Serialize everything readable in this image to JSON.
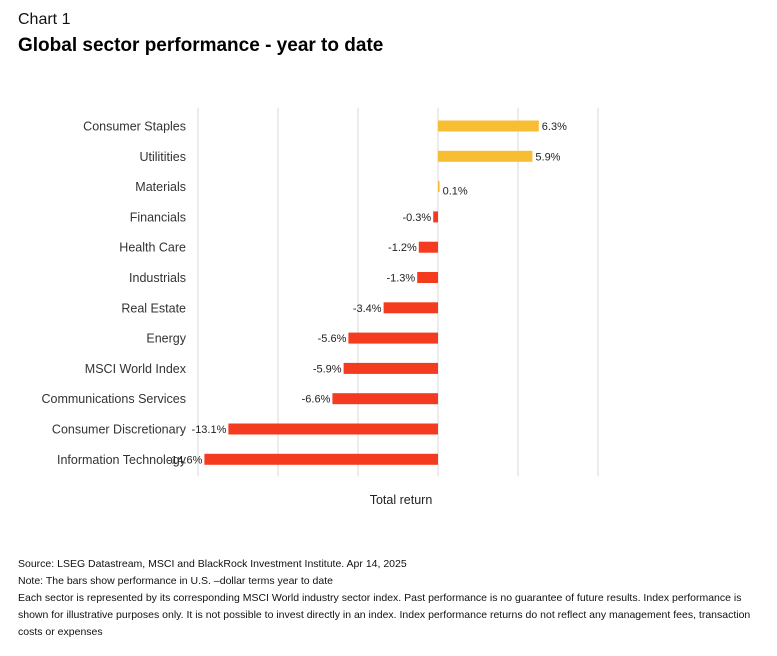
{
  "header": {
    "chart_number": "Chart 1",
    "title": "Global sector performance - year to date"
  },
  "chart_data": {
    "type": "bar",
    "orientation": "horizontal",
    "categories": [
      "Consumer Staples",
      "Utilitities",
      "Materials",
      "Financials",
      "Health Care",
      "Industrials",
      "Real Estate",
      "Energy",
      "MSCI World Index",
      "Communications Services",
      "Consumer Discretionary",
      "Information Technology"
    ],
    "values": [
      6.3,
      5.9,
      0.1,
      -0.3,
      -1.2,
      -1.3,
      -3.4,
      -5.6,
      -5.9,
      -6.6,
      -13.1,
      -14.6
    ],
    "data_labels": [
      "6.3%",
      "5.9%",
      "0.1%",
      "-0.3%",
      "-1.2%",
      "-1.3%",
      "-3.4%",
      "-5.6%",
      "-5.9%",
      "-6.6%",
      "-13.1%",
      "-14.6%"
    ],
    "xlabel": "Total return",
    "ylabel": "",
    "xlim": [
      -15,
      10
    ],
    "gridlines_at": [
      -15,
      -10,
      -5,
      0,
      5,
      10
    ],
    "grid": true,
    "colors": {
      "positive": "#F7BE33",
      "negative": "#F53B1F",
      "grid": "#D9D9D9"
    }
  },
  "footer": {
    "source": "Source: LSEG Datastream, MSCI and BlackRock Investment Institute. Apr 14, 2025",
    "note": "Note: The bars show performance in U.S. –dollar terms year to date",
    "disclaimer": "Each sector is represented by its corresponding MSCI World industry sector index. Past performance is no guarantee of future results. Index performance is shown for illustrative purposes only. It is not possible to invest directly in an index. Index performance returns do not reflect any management fees, transaction costs or expenses"
  }
}
